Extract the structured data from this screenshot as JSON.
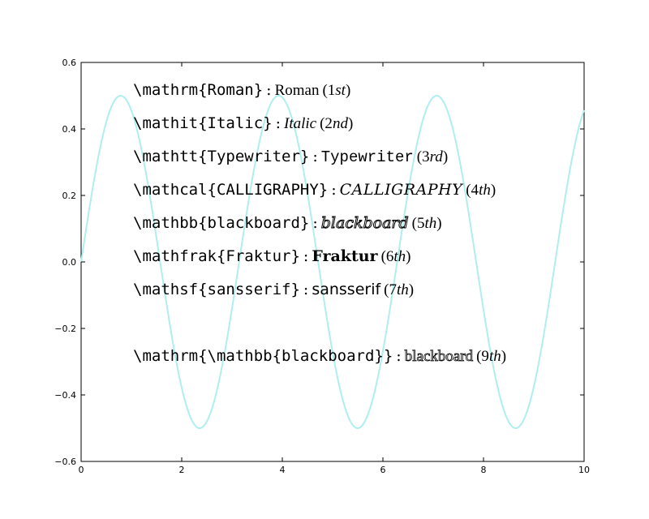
{
  "chart_data": {
    "type": "line",
    "title": "",
    "xlabel": "",
    "ylabel": "",
    "xlim": [
      0,
      10
    ],
    "ylim": [
      -0.6,
      0.6
    ],
    "xticks": [
      "0",
      "2",
      "4",
      "6",
      "8",
      "10"
    ],
    "yticks": [
      "−0.6",
      "−0.4",
      "−0.2",
      "0.0",
      "0.2",
      "0.4",
      "0.6"
    ],
    "grid": false,
    "series": [
      {
        "function": "0.5*sin(2*x)",
        "color": "#afeeee"
      }
    ],
    "annotations": [
      {
        "command": "\\mathrm{Roman}",
        "rendered": "Roman",
        "order_num": "1",
        "order_suffix": "st",
        "style": "roman"
      },
      {
        "command": "\\mathit{Italic}",
        "rendered": "Italic",
        "order_num": "2",
        "order_suffix": "nd",
        "style": "ital"
      },
      {
        "command": "\\mathtt{Typewriter}",
        "rendered": "Typewriter",
        "order_num": "3",
        "order_suffix": "rd",
        "style": "mono"
      },
      {
        "command": "\\mathcal{CALLIGRAPHY}",
        "rendered": "CALLIGRAPHY",
        "order_num": "4",
        "order_suffix": "th",
        "style": "cal"
      },
      {
        "command": "\\mathbb{blackboard}",
        "rendered": "blackboard",
        "order_num": "5",
        "order_suffix": "th",
        "style": "bb"
      },
      {
        "command": "\\mathfrak{Fraktur}",
        "rendered": "Fraktur",
        "order_num": "6",
        "order_suffix": "th",
        "style": "frak"
      },
      {
        "command": "\\mathsf{sansserif}",
        "rendered": "sansserif",
        "order_num": "7",
        "order_suffix": "th",
        "style": "sans"
      },
      {
        "command": "\\mathrm{\\mathbb{blackboard}}",
        "rendered": "blackboard",
        "order_num": "9",
        "order_suffix": "th",
        "style": "bbroman"
      }
    ]
  }
}
